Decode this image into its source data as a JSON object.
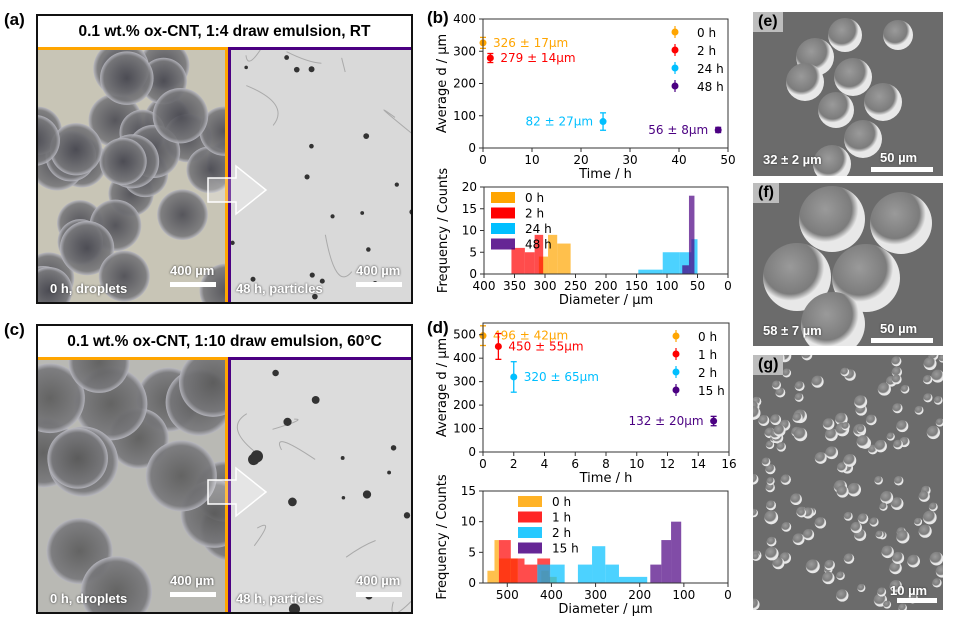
{
  "panels": {
    "a": {
      "label": "(a)",
      "title": "0.1 wt.% ox-CNT, 1:4 draw emulsion, RT",
      "left_caption": "0 h, droplets",
      "right_caption": "48 h, particles",
      "scale_left": "400 µm",
      "scale_right": "400 µm",
      "left_border_color": "#FFA500",
      "right_border_color": "#4B0082"
    },
    "b": {
      "label": "(b)"
    },
    "c": {
      "label": "(c)",
      "title": "0.1 wt.% ox-CNT, 1:10 draw emulsion, 60°C",
      "left_caption": "0 h, droplets",
      "right_caption": "48 h, particles",
      "scale_left": "400 µm",
      "scale_right": "400 µm",
      "left_border_color": "#FFA500",
      "right_border_color": "#4B0082"
    },
    "d": {
      "label": "(d)"
    },
    "e": {
      "label": "(e)",
      "size": "32 ± 2 µm",
      "scale": "50 µm"
    },
    "f": {
      "label": "(f)",
      "size": "58 ± 7 µm",
      "scale": "50 µm"
    },
    "g": {
      "label": "(g)",
      "scale": "10 µm"
    }
  },
  "chart_data": [
    {
      "id": "b-scatter",
      "type": "scatter",
      "xlabel": "Time / h",
      "ylabel": "Average d / µm",
      "xlim": [
        0,
        50
      ],
      "ylim": [
        0,
        400
      ],
      "xticks": [
        0,
        10,
        20,
        30,
        40,
        50
      ],
      "yticks": [
        0,
        100,
        200,
        300,
        400
      ],
      "legend_position": "top-right",
      "series": [
        {
          "name": "0 h",
          "color": "#FFA500",
          "x": 0,
          "y": 326,
          "err": 17,
          "annotation": "326 ± 17µm",
          "annotation_side": "right"
        },
        {
          "name": "2 h",
          "color": "#FF0000",
          "x": 1.5,
          "y": 279,
          "err": 14,
          "annotation": "279 ± 14µm",
          "annotation_side": "right"
        },
        {
          "name": "24 h",
          "color": "#00BFFF",
          "x": 24.5,
          "y": 82,
          "err": 27,
          "annotation": "82 ± 27µm",
          "annotation_side": "left"
        },
        {
          "name": "48 h",
          "color": "#4B0082",
          "x": 48,
          "y": 56,
          "err": 8,
          "annotation": "56 ± 8µm",
          "annotation_side": "left"
        }
      ]
    },
    {
      "id": "b-hist",
      "type": "bar",
      "xlabel": "Diameter / µm",
      "ylabel": "Frequency / Counts",
      "xlim": [
        400,
        0
      ],
      "ylim": [
        0,
        20
      ],
      "xticks": [
        400,
        350,
        300,
        250,
        200,
        150,
        100,
        50,
        0
      ],
      "yticks": [
        0,
        5,
        10,
        15,
        20
      ],
      "legend_position": "top-left",
      "series": [
        {
          "name": "0 h",
          "color": "#FFA500",
          "bins": [
            [
              310,
              295,
              4
            ],
            [
              295,
              280,
              9
            ],
            [
              280,
              258,
              7
            ]
          ]
        },
        {
          "name": "2 h",
          "color": "#FF0000",
          "bins": [
            [
              355,
              333,
              6
            ],
            [
              333,
              317,
              5
            ],
            [
              317,
              303,
              9
            ]
          ]
        },
        {
          "name": "24 h",
          "color": "#00BFFF",
          "bins": [
            [
              147,
              107,
              1
            ],
            [
              107,
              80,
              5
            ],
            [
              80,
              60,
              5
            ],
            [
              60,
              50,
              8
            ]
          ]
        },
        {
          "name": "48 h",
          "color": "#4B0082",
          "bins": [
            [
              75,
              64,
              2
            ],
            [
              64,
              55,
              18
            ]
          ]
        }
      ]
    },
    {
      "id": "d-scatter",
      "type": "scatter",
      "xlabel": "Time / h",
      "ylabel": "Average d / µm",
      "xlim": [
        0,
        16
      ],
      "ylim": [
        0,
        550
      ],
      "xticks": [
        0,
        2,
        4,
        6,
        8,
        10,
        12,
        14,
        16
      ],
      "yticks": [
        0,
        100,
        200,
        300,
        400,
        500
      ],
      "legend_position": "top-right",
      "series": [
        {
          "name": "0 h",
          "color": "#FFA500",
          "x": 0,
          "y": 496,
          "err": 42,
          "annotation": "496 ± 42µm",
          "annotation_side": "right"
        },
        {
          "name": "1 h",
          "color": "#FF0000",
          "x": 1,
          "y": 450,
          "err": 55,
          "annotation": "450 ± 55µm",
          "annotation_side": "right"
        },
        {
          "name": "2 h",
          "color": "#00BFFF",
          "x": 2,
          "y": 320,
          "err": 65,
          "annotation": "320 ± 65µm",
          "annotation_side": "right"
        },
        {
          "name": "15 h",
          "color": "#4B0082",
          "x": 15,
          "y": 132,
          "err": 20,
          "annotation": "132 ± 20µm",
          "annotation_side": "left"
        }
      ]
    },
    {
      "id": "d-hist",
      "type": "bar",
      "xlabel": "Diameter / µm",
      "ylabel": "Frequency / Counts",
      "xlim": [
        555,
        0
      ],
      "ylim": [
        0,
        15
      ],
      "xticks": [
        500,
        400,
        300,
        200,
        100,
        0
      ],
      "yticks": [
        0,
        5,
        10,
        15
      ],
      "legend_position": "top-left",
      "series": [
        {
          "name": "0 h",
          "color": "#FFA500",
          "bins": [
            [
              545,
              529,
              2
            ],
            [
              529,
              519,
              7
            ],
            [
              519,
              476,
              4
            ],
            [
              423,
              406,
              2
            ],
            [
              406,
              388,
              1
            ]
          ]
        },
        {
          "name": "1 h",
          "color": "#FF0000",
          "bins": [
            [
              519,
              492,
              7
            ],
            [
              492,
              476,
              4
            ],
            [
              476,
              461,
              4
            ],
            [
              461,
              432,
              3
            ],
            [
              432,
              403,
              4
            ]
          ]
        },
        {
          "name": "2 h",
          "color": "#00BFFF",
          "bins": [
            [
              432,
              403,
              3
            ],
            [
              403,
              370,
              3
            ],
            [
              340,
              308,
              3
            ],
            [
              308,
              278,
              6
            ],
            [
              278,
              247,
              3
            ],
            [
              247,
              183,
              1
            ]
          ]
        },
        {
          "name": "15 h",
          "color": "#4B0082",
          "bins": [
            [
              176,
              151,
              3
            ],
            [
              151,
              129,
              7
            ],
            [
              129,
              106,
              10
            ]
          ]
        }
      ]
    }
  ]
}
